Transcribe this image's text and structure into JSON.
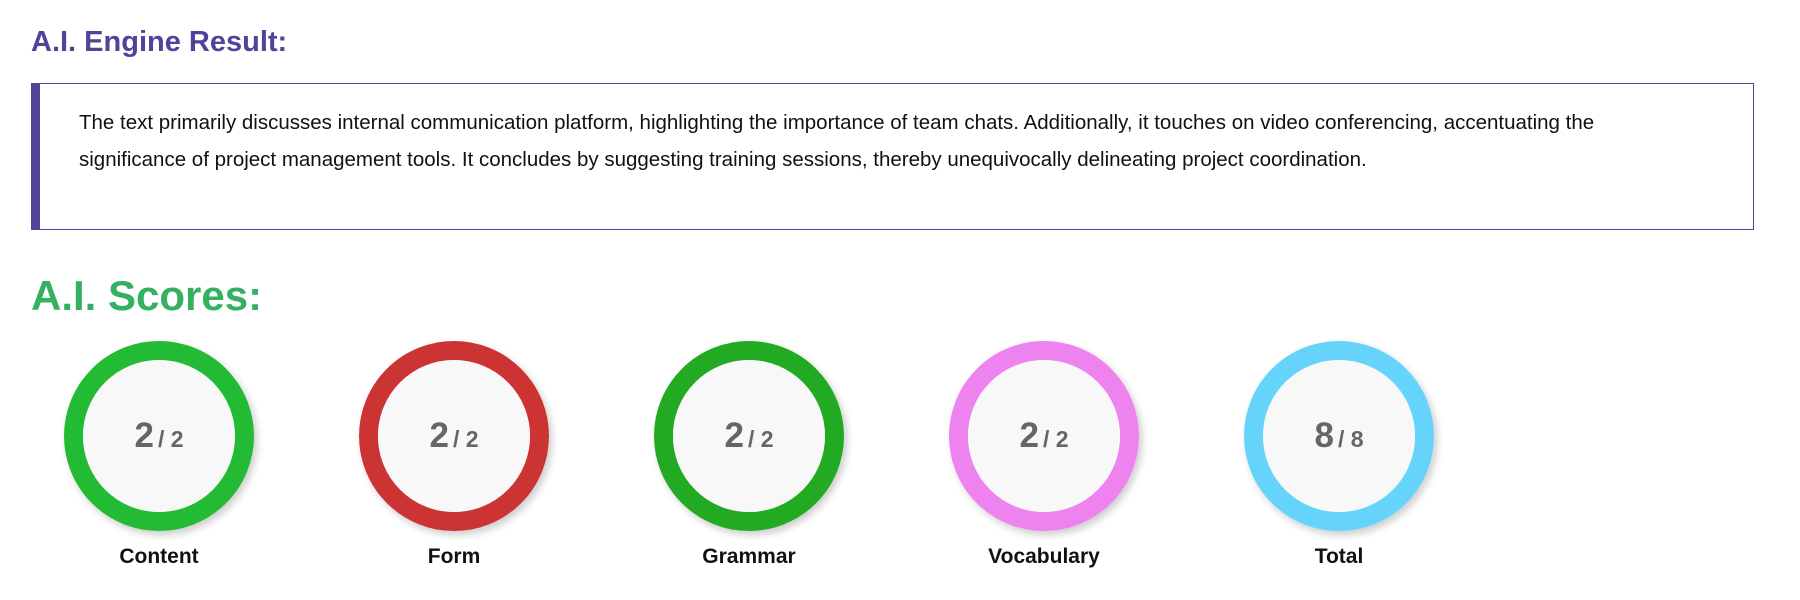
{
  "engine": {
    "title": "A.I. Engine Result:",
    "text": "The text primarily discusses internal communication platform, highlighting the importance of team chats. Additionally, it touches on video conferencing, accentuating the significance of project management tools. It concludes by suggesting training sessions, thereby unequivocally delineating project coordination.",
    "accent_color": "#4e4499"
  },
  "scores": {
    "title": "A.I. Scores:",
    "title_color": "#33b060",
    "items": [
      {
        "label": "Content",
        "value": "2",
        "max": "/ 2",
        "color": "#22bb33"
      },
      {
        "label": "Form",
        "value": "2",
        "max": "/ 2",
        "color": "#cc3333"
      },
      {
        "label": "Grammar",
        "value": "2",
        "max": "/ 2",
        "color": "#22aa22"
      },
      {
        "label": "Vocabulary",
        "value": "2",
        "max": "/ 2",
        "color": "#ee82ee"
      },
      {
        "label": "Total",
        "value": "8",
        "max": "/ 8",
        "color": "#66d4fa"
      }
    ]
  }
}
